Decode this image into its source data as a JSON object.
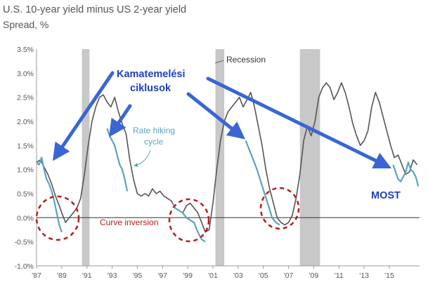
{
  "chart_data": {
    "type": "line",
    "title": "U.S. 10-year yield minus US 2-year yield",
    "subtitle": "Spread, %",
    "y_ticks": [
      "3.5%",
      "3.0%",
      "2.5%",
      "2.0%",
      "1.5%",
      "1.0%",
      "0.5%",
      "0.0%",
      "-0.5%",
      "-1.0%"
    ],
    "x_ticks": [
      "'87",
      "'89",
      "'91",
      "'93",
      "'95",
      "'97",
      "'99",
      "'01",
      "'03",
      "'05",
      "'07",
      "'09",
      "'11",
      "'13",
      "'15"
    ],
    "ylim": [
      -1.0,
      3.5
    ],
    "xlim": [
      1987.0,
      2017.4
    ],
    "grid": false,
    "recessions": [
      [
        1990.6,
        1991.2
      ],
      [
        2001.2,
        2001.9
      ],
      [
        2007.9,
        2009.5
      ]
    ],
    "series": [
      {
        "color": "#555555",
        "x": [
          1987.0,
          1987.3,
          1987.6,
          1987.9,
          1988.2,
          1988.5,
          1988.8,
          1989.0,
          1989.3,
          1989.6,
          1989.9,
          1990.2,
          1990.5,
          1990.8,
          1991.1,
          1991.4,
          1991.7,
          1992.0,
          1992.3,
          1992.6,
          1992.9,
          1993.2,
          1993.5,
          1993.8,
          1994.1,
          1994.4,
          1994.7,
          1995.0,
          1995.3,
          1995.6,
          1995.9,
          1996.2,
          1996.5,
          1996.8,
          1997.1,
          1997.4,
          1997.7,
          1998.0,
          1998.3,
          1998.6,
          1998.9,
          1999.2,
          1999.5,
          1999.8,
          2000.1,
          2000.4,
          2000.7,
          2001.0,
          2001.3,
          2001.6,
          2001.9,
          2002.2,
          2002.5,
          2002.8,
          2003.1,
          2003.4,
          2003.7,
          2004.0,
          2004.3,
          2004.6,
          2004.9,
          2005.2,
          2005.5,
          2005.8,
          2006.1,
          2006.4,
          2006.7,
          2007.0,
          2007.3,
          2007.6,
          2007.9,
          2008.2,
          2008.5,
          2008.8,
          2009.1,
          2009.4,
          2009.7,
          2010.0,
          2010.3,
          2010.6,
          2010.9,
          2011.2,
          2011.5,
          2011.8,
          2012.1,
          2012.4,
          2012.7,
          2013.0,
          2013.3,
          2013.6,
          2013.9,
          2014.2,
          2014.5,
          2014.8,
          2015.1,
          2015.4,
          2015.7,
          2016.0,
          2016.3,
          2016.6,
          2016.9,
          2017.2
        ],
        "y": [
          1.15,
          1.2,
          1.05,
          0.9,
          0.7,
          0.45,
          0.25,
          0.1,
          -0.1,
          0.0,
          0.1,
          0.2,
          0.4,
          0.9,
          1.5,
          2.0,
          2.3,
          2.5,
          2.55,
          2.4,
          2.3,
          2.5,
          2.2,
          1.95,
          1.75,
          1.2,
          0.8,
          0.5,
          0.45,
          0.5,
          0.45,
          0.6,
          0.5,
          0.55,
          0.45,
          0.4,
          0.35,
          0.2,
          0.15,
          0.1,
          0.25,
          0.3,
          0.2,
          0.1,
          -0.1,
          -0.3,
          -0.25,
          0.3,
          1.0,
          1.6,
          2.0,
          2.2,
          2.3,
          2.4,
          2.5,
          2.3,
          2.45,
          2.6,
          2.3,
          1.9,
          1.5,
          1.0,
          0.6,
          0.3,
          0.0,
          -0.1,
          -0.15,
          -0.1,
          0.05,
          0.4,
          0.9,
          1.6,
          1.9,
          1.7,
          2.0,
          2.5,
          2.7,
          2.8,
          2.7,
          2.45,
          2.6,
          2.8,
          2.6,
          2.3,
          1.95,
          1.7,
          1.5,
          1.6,
          1.8,
          2.3,
          2.6,
          2.4,
          2.1,
          1.8,
          1.5,
          1.25,
          1.3,
          1.1,
          0.9,
          0.95,
          1.2,
          1.1
        ]
      },
      {
        "color": "#5ba4be",
        "x": [
          1987.0,
          1987.2,
          1987.4,
          1987.6,
          1987.8,
          1988.0,
          1988.2,
          1988.4,
          1988.6,
          1988.8,
          1989.0
        ],
        "y": [
          1.15,
          1.1,
          1.25,
          1.0,
          0.8,
          0.7,
          0.55,
          0.35,
          0.1,
          -0.15,
          -0.3
        ]
      },
      {
        "color": "#5ba4be",
        "x": [
          1992.6,
          1992.8,
          1993.0,
          1993.2,
          1993.4,
          1993.6,
          1993.8,
          1994.0,
          1994.2
        ],
        "y": [
          1.85,
          1.7,
          1.6,
          1.5,
          1.3,
          1.1,
          1.0,
          0.8,
          0.55
        ]
      },
      {
        "color": "#5ba4be",
        "x": [
          1997.8,
          1998.0,
          1998.3,
          1998.6,
          1998.9,
          1999.2,
          1999.5,
          1999.8,
          2000.1,
          2000.4
        ],
        "y": [
          0.3,
          0.2,
          0.15,
          0.1,
          0.0,
          -0.05,
          -0.1,
          -0.3,
          -0.45,
          -0.5
        ]
      },
      {
        "color": "#5ba4be",
        "x": [
          2003.6,
          2003.9,
          2004.2,
          2004.5,
          2004.8,
          2005.1,
          2005.4,
          2005.7,
          2006.0,
          2006.3
        ],
        "y": [
          1.6,
          1.4,
          1.2,
          1.0,
          0.75,
          0.5,
          0.25,
          0.0,
          -0.1,
          -0.15
        ]
      },
      {
        "color": "#5ba4be",
        "x": [
          2015.3,
          2015.5,
          2015.7,
          2015.9,
          2016.1,
          2016.3,
          2016.5,
          2016.7,
          2016.9,
          2017.1,
          2017.3
        ],
        "y": [
          1.1,
          0.95,
          0.8,
          0.75,
          0.85,
          0.95,
          1.15,
          1.0,
          0.95,
          0.85,
          0.65
        ]
      }
    ],
    "annotations": {
      "recession": "Recession",
      "rate_hiking_line1": "Rate hiking",
      "rate_hiking_line2": "cycle",
      "curve_inversion": "Curve inversion",
      "kamat_line1": "Kamatemelési",
      "kamat_line2": "ciklusok",
      "most": "MOST"
    },
    "colors": {
      "main_line": "#555555",
      "hiking_line": "#5ba4be",
      "recession_band": "#c8c8c8",
      "overlay_arrows": "#3a66d4",
      "inversion_circles": "#b71c1c"
    }
  }
}
